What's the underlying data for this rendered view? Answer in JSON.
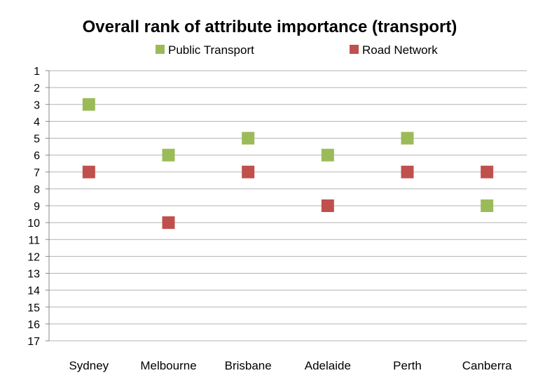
{
  "chart_data": {
    "type": "scatter",
    "title": "Overall rank of attribute importance (transport)",
    "xlabel": "",
    "ylabel": "",
    "categories": [
      "Sydney",
      "Melbourne",
      "Brisbane",
      "Adelaide",
      "Perth",
      "Canberra"
    ],
    "yticks": [
      1,
      2,
      3,
      4,
      5,
      6,
      7,
      8,
      9,
      10,
      11,
      12,
      13,
      14,
      15,
      16,
      17
    ],
    "ylim": [
      1,
      17
    ],
    "y_reversed": true,
    "grid": true,
    "legend_position": "top",
    "series": [
      {
        "name": "Public Transport",
        "color": "#9bbb59",
        "values": [
          3,
          6,
          5,
          6,
          5,
          9
        ]
      },
      {
        "name": "Road Network",
        "color": "#c0504d",
        "values": [
          7,
          10,
          7,
          9,
          7,
          7
        ]
      }
    ]
  }
}
